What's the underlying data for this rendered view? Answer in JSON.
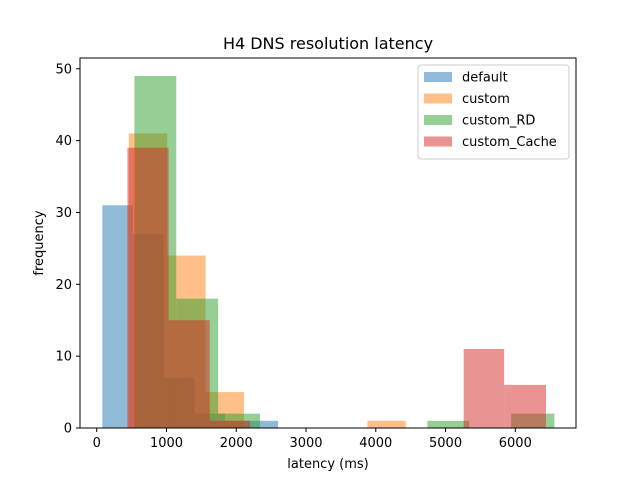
{
  "chart_data": {
    "type": "bar",
    "subtype": "overlaid-histogram",
    "title": "H4 DNS resolution latency",
    "xlabel": "latency (ms)",
    "ylabel": "frequency",
    "xlim": [
      -240,
      6870
    ],
    "ylim": [
      0,
      51.5
    ],
    "xticks": [
      0,
      1000,
      2000,
      3000,
      4000,
      5000,
      6000
    ],
    "yticks": [
      0,
      10,
      20,
      30,
      40,
      50
    ],
    "grid": false,
    "legend_position": "top-right",
    "bar_alpha": 0.5,
    "series": [
      {
        "name": "default",
        "color": "#1f77b4",
        "bins": [
          {
            "x0": 80,
            "x1": 520,
            "count": 31
          },
          {
            "x0": 520,
            "x1": 960,
            "count": 27
          },
          {
            "x0": 960,
            "x1": 1400,
            "count": 7
          },
          {
            "x0": 1400,
            "x1": 1840,
            "count": 2
          },
          {
            "x0": 1840,
            "x1": 2280,
            "count": 1
          },
          {
            "x0": 2280,
            "x1": 2600,
            "count": 1
          }
        ]
      },
      {
        "name": "custom",
        "color": "#ff7f0e",
        "bins": [
          {
            "x0": 460,
            "x1": 1010,
            "count": 41
          },
          {
            "x0": 1010,
            "x1": 1560,
            "count": 24
          },
          {
            "x0": 1560,
            "x1": 2110,
            "count": 5
          },
          {
            "x0": 2110,
            "x1": 2660,
            "count": 0
          },
          {
            "x0": 3880,
            "x1": 4430,
            "count": 1
          }
        ]
      },
      {
        "name": "custom_RD",
        "color": "#2ca02c",
        "bins": [
          {
            "x0": 540,
            "x1": 1140,
            "count": 49
          },
          {
            "x0": 1140,
            "x1": 1740,
            "count": 18
          },
          {
            "x0": 1740,
            "x1": 2340,
            "count": 2
          },
          {
            "x0": 4740,
            "x1": 5340,
            "count": 1
          },
          {
            "x0": 5940,
            "x1": 6560,
            "count": 2
          }
        ]
      },
      {
        "name": "custom_Cache",
        "color": "#d62728",
        "bins": [
          {
            "x0": 440,
            "x1": 1030,
            "count": 39
          },
          {
            "x0": 1030,
            "x1": 1620,
            "count": 15
          },
          {
            "x0": 1620,
            "x1": 2200,
            "count": 1
          },
          {
            "x0": 5260,
            "x1": 5840,
            "count": 11
          },
          {
            "x0": 5840,
            "x1": 6440,
            "count": 6
          }
        ]
      }
    ]
  }
}
